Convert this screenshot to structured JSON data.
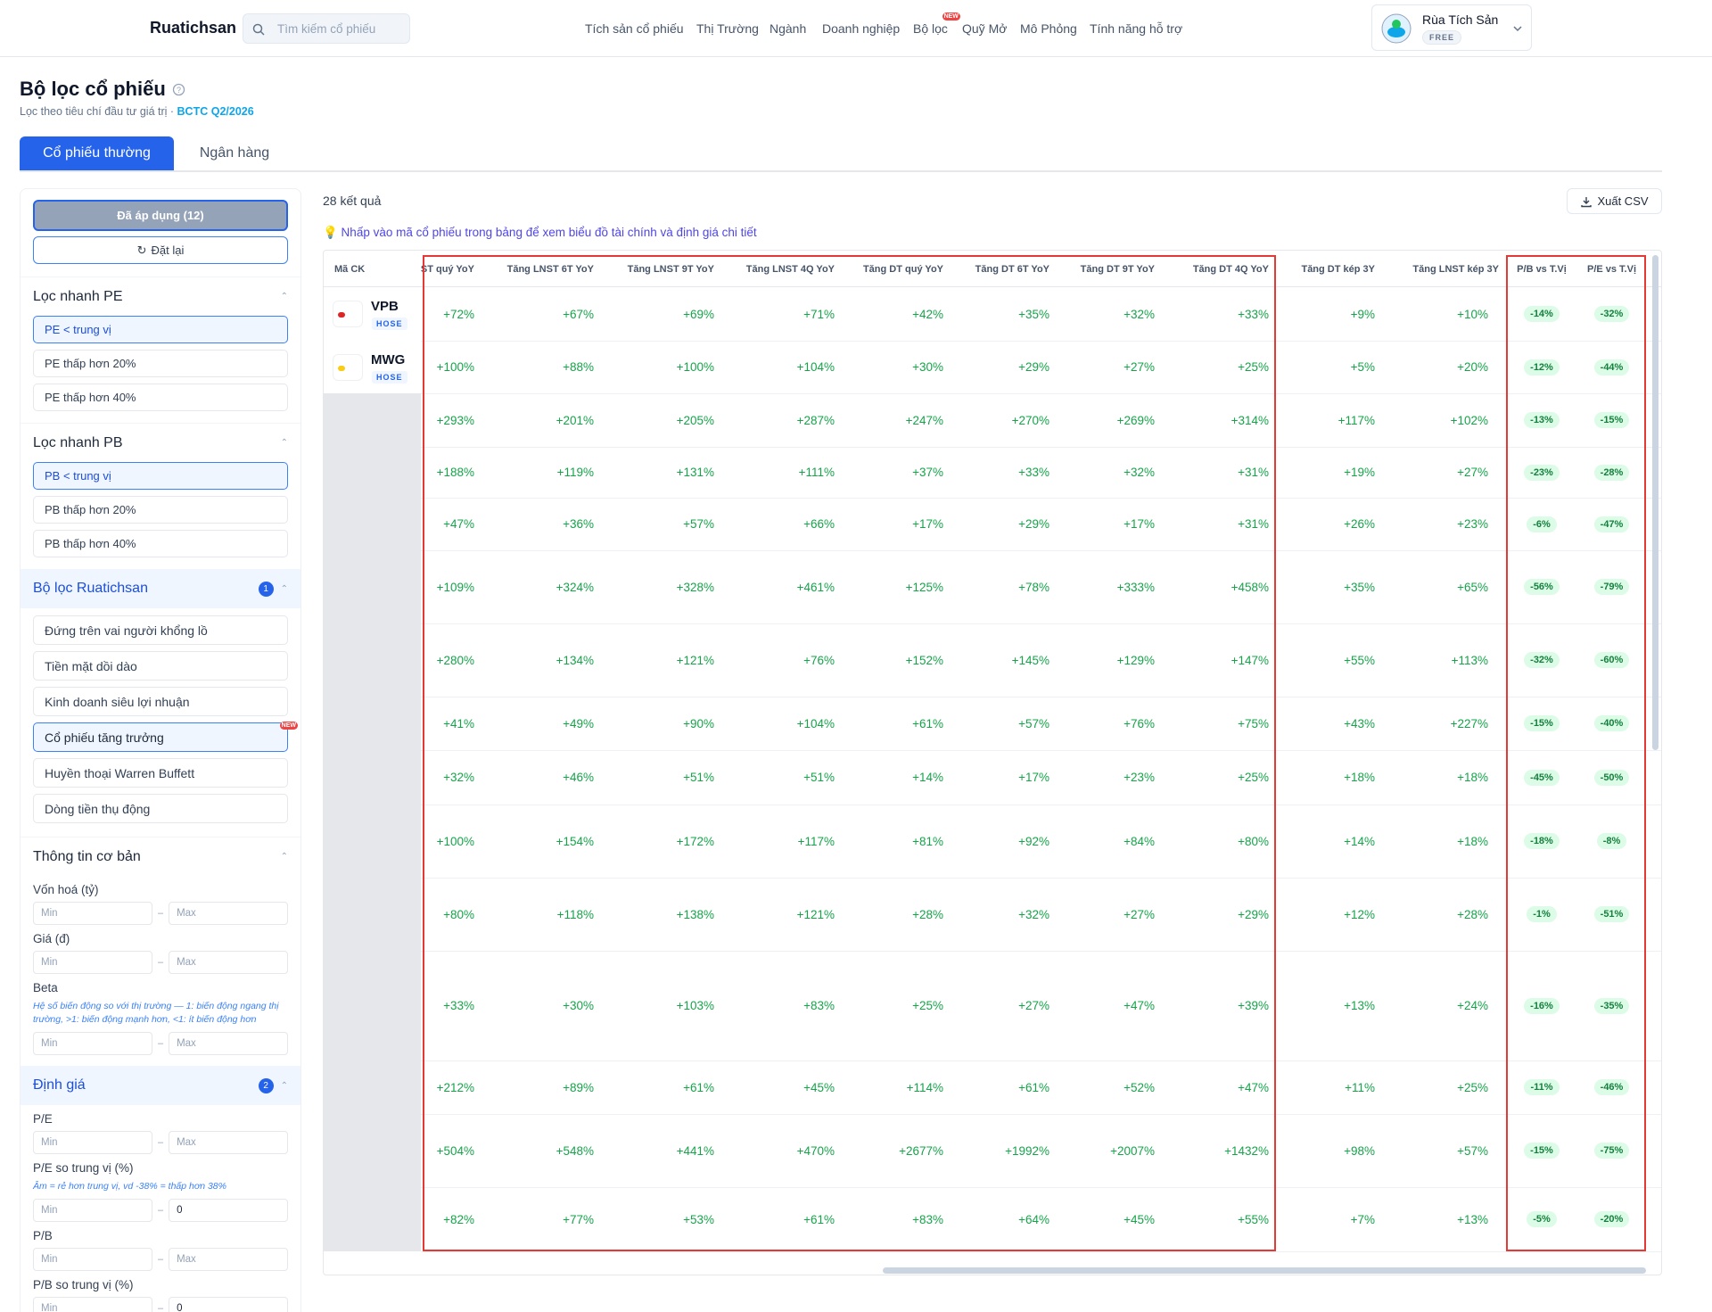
{
  "header": {
    "logo": "Ruatichsan",
    "search_placeholder": "Tìm kiếm cổ phiếu",
    "nav": [
      {
        "label": "Tích sản cổ phiếu"
      },
      {
        "label": "Thị Trường"
      },
      {
        "label": "Ngành"
      },
      {
        "label": "Doanh nghiệp"
      },
      {
        "label": "Bộ lọc",
        "badge": "NEW"
      },
      {
        "label": "Quỹ Mở"
      },
      {
        "label": "Mô Phỏng"
      },
      {
        "label": "Tính năng hỗ trợ"
      }
    ],
    "user": {
      "name": "Rùa Tích Sản",
      "plan": "FREE"
    }
  },
  "page": {
    "title": "Bộ lọc cổ phiếu",
    "subtitle": "Lọc theo tiêu chí đầu tư giá trị ·",
    "report": "BCTC Q2/2026"
  },
  "tabs": [
    "Cổ phiếu thường",
    "Ngân hàng"
  ],
  "sidebar": {
    "applied": "Đã áp dụng (12)",
    "reset": "Đặt lại",
    "quick": [
      {
        "title": "Lọc nhanh PE",
        "options": [
          "PE < trung vị",
          "PE thấp hơn 20%",
          "PE thấp hơn 40%"
        ]
      },
      {
        "title": "Lọc nhanh PB",
        "options": [
          "PB < trung vị",
          "PB thấp hơn 20%",
          "PB thấp hơn 40%"
        ]
      }
    ],
    "preset": {
      "title": "Bộ lọc Ruatichsan",
      "badge": "1",
      "options": [
        "Đứng trên vai người khổng lồ",
        "Tiền mặt dồi dào",
        "Kinh doanh siêu lợi nhuận",
        "Cổ phiếu tăng trưởng",
        "Huyền thoại Warren Buffett",
        "Dòng tiền thụ động"
      ],
      "new_badge": "NEW"
    },
    "basic": {
      "title": "Thông tin cơ bản",
      "fields": [
        {
          "label": "Vốn hoá (tỷ)",
          "min": "Min",
          "max": "Max"
        },
        {
          "label": "Giá (đ)",
          "min": "Min",
          "max": "Max"
        },
        {
          "label": "Beta",
          "note": "Hệ số biến động so với thị trường — 1: biến động ngang thị trường, >1: biến động mạnh hơn, <1: ít biến động hơn",
          "min": "Min",
          "max": "Max"
        }
      ]
    },
    "valuation": {
      "title": "Định giá",
      "badge": "2",
      "fields": [
        {
          "label": "P/E",
          "min": "Min",
          "max": "Max"
        },
        {
          "label": "P/E so trung vị (%)",
          "note": "Âm = rẻ hơn trung vị, vd -38% = thấp hơn 38%",
          "min": "Min",
          "max": "0"
        },
        {
          "label": "P/B",
          "min": "Min",
          "max": "Max"
        },
        {
          "label": "P/B so trung vị (%)",
          "min": "Min",
          "max": "0"
        }
      ]
    }
  },
  "results": {
    "count": "28 kết quả",
    "export": "Xuất CSV",
    "hint": "💡 Nhấp vào mã cổ phiếu trong bảng để xem biểu đồ tài chính và định giá chi tiết"
  },
  "table": {
    "columns": [
      "Mã CK",
      "Tăng LNST quý YoY",
      "Tăng LNST 6T YoY",
      "Tăng LNST 9T YoY",
      "Tăng LNST 4Q YoY",
      "Tăng DT quý YoY",
      "Tăng DT 6T YoY",
      "Tăng DT 9T YoY",
      "Tăng DT 4Q YoY",
      "Tăng DT kép 3Y",
      "Tăng LNST kép 3Y",
      "P/B vs T.Vị",
      "P/E vs T.Vị"
    ],
    "rows": [
      {
        "ticker": "VPB",
        "exchange": "HOSE",
        "cells": [
          "+72%",
          "+67%",
          "+69%",
          "+71%",
          "+42%",
          "+35%",
          "+32%",
          "+33%",
          "+9%",
          "+10%",
          "-14%",
          "-32%"
        ]
      },
      {
        "ticker": "MWG",
        "exchange": "HOSE",
        "cells": [
          "+100%",
          "+88%",
          "+100%",
          "+104%",
          "+30%",
          "+29%",
          "+27%",
          "+25%",
          "+5%",
          "+20%",
          "-12%",
          "-44%"
        ]
      },
      {
        "cells": [
          "+293%",
          "+201%",
          "+205%",
          "+287%",
          "+247%",
          "+270%",
          "+269%",
          "+314%",
          "+117%",
          "+102%",
          "-13%",
          "-15%"
        ]
      },
      {
        "cells": [
          "+188%",
          "+119%",
          "+131%",
          "+111%",
          "+37%",
          "+33%",
          "+32%",
          "+31%",
          "+19%",
          "+27%",
          "-23%",
          "-28%"
        ]
      },
      {
        "cells": [
          "+47%",
          "+36%",
          "+57%",
          "+66%",
          "+17%",
          "+29%",
          "+17%",
          "+31%",
          "+26%",
          "+23%",
          "-6%",
          "-47%"
        ]
      },
      {
        "cells": [
          "+109%",
          "+324%",
          "+328%",
          "+461%",
          "+125%",
          "+78%",
          "+333%",
          "+458%",
          "+35%",
          "+65%",
          "-56%",
          "-79%"
        ]
      },
      {
        "cells": [
          "+280%",
          "+134%",
          "+121%",
          "+76%",
          "+152%",
          "+145%",
          "+129%",
          "+147%",
          "+55%",
          "+113%",
          "-32%",
          "-60%"
        ]
      },
      {
        "cells": [
          "+41%",
          "+49%",
          "+90%",
          "+104%",
          "+61%",
          "+57%",
          "+76%",
          "+75%",
          "+43%",
          "+227%",
          "-15%",
          "-40%"
        ]
      },
      {
        "cells": [
          "+32%",
          "+46%",
          "+51%",
          "+51%",
          "+14%",
          "+17%",
          "+23%",
          "+25%",
          "+18%",
          "+18%",
          "-45%",
          "-50%"
        ]
      },
      {
        "cells": [
          "+100%",
          "+154%",
          "+172%",
          "+117%",
          "+81%",
          "+92%",
          "+84%",
          "+80%",
          "+14%",
          "+18%",
          "-18%",
          "-8%"
        ]
      },
      {
        "cells": [
          "+80%",
          "+118%",
          "+138%",
          "+121%",
          "+28%",
          "+32%",
          "+27%",
          "+29%",
          "+12%",
          "+28%",
          "-1%",
          "-51%"
        ]
      },
      {
        "cells": [
          "+33%",
          "+30%",
          "+103%",
          "+83%",
          "+25%",
          "+27%",
          "+47%",
          "+39%",
          "+13%",
          "+24%",
          "-16%",
          "-35%"
        ]
      },
      {
        "cells": [
          "+212%",
          "+89%",
          "+61%",
          "+45%",
          "+114%",
          "+61%",
          "+52%",
          "+47%",
          "+11%",
          "+25%",
          "-11%",
          "-46%"
        ]
      },
      {
        "cells": [
          "+504%",
          "+548%",
          "+441%",
          "+470%",
          "+2677%",
          "+1992%",
          "+2007%",
          "+1432%",
          "+98%",
          "+57%",
          "-15%",
          "-75%"
        ]
      },
      {
        "cells": [
          "+82%",
          "+77%",
          "+53%",
          "+61%",
          "+83%",
          "+64%",
          "+45%",
          "+55%",
          "+7%",
          "+13%",
          "-5%",
          "-20%"
        ]
      }
    ]
  }
}
